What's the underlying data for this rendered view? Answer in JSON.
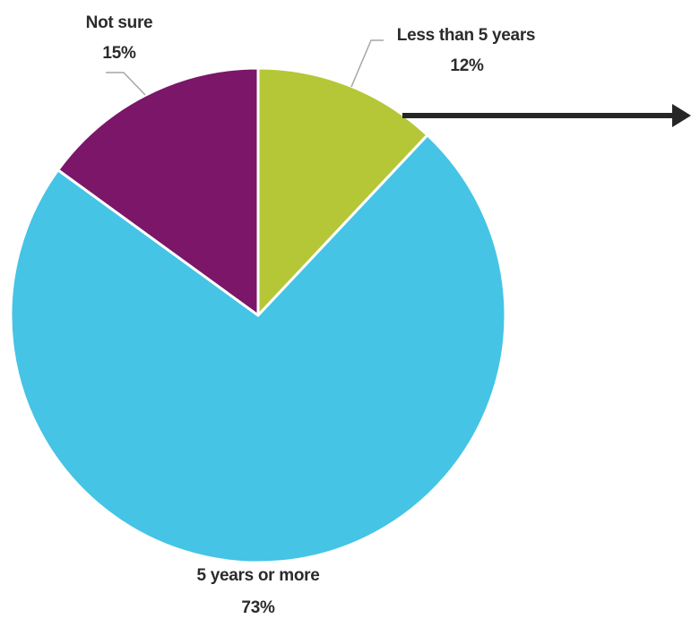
{
  "chart_data": {
    "type": "pie",
    "slices": [
      {
        "label": "Less than 5 years",
        "value": 12,
        "value_label": "12%",
        "color": "#b5c737"
      },
      {
        "label": "5 years or more",
        "value": 73,
        "value_label": "73%",
        "color": "#45c4e5"
      },
      {
        "label": "Not sure",
        "value": 15,
        "value_label": "15%",
        "color": "#7b1669"
      }
    ],
    "start_angle_deg": 0,
    "direction": "clockwise",
    "slice_border_color": "#ffffff",
    "leader_line_color": "#a6a6a6",
    "arrow_color": "#262626"
  }
}
